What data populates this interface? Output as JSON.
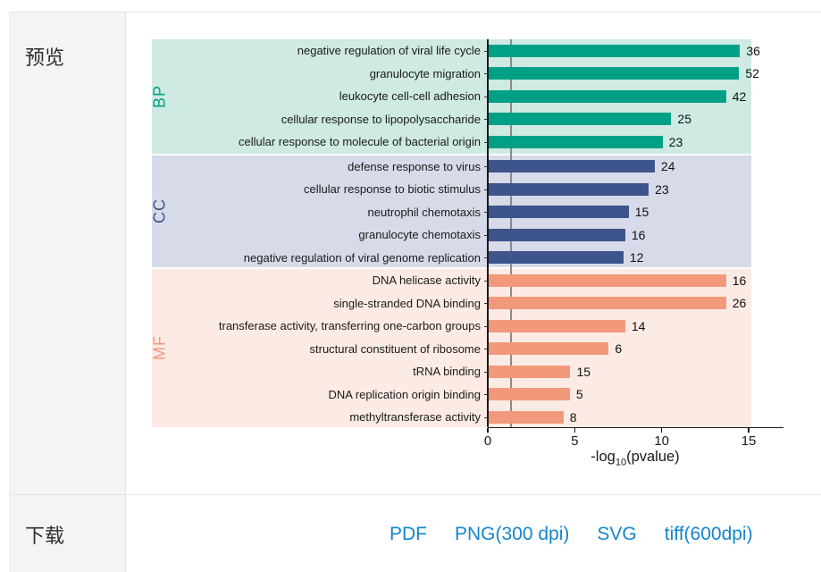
{
  "panel": {
    "preview_label": "预览",
    "download_label": "下载"
  },
  "download_links": [
    "PDF",
    "PNG(300 dpi)",
    "SVG",
    "tiff(600dpi)"
  ],
  "link_color": "#1386CE",
  "chart_data": {
    "type": "bar",
    "orientation": "horizontal",
    "xlabel": "-log10(pvalue)",
    "xlabel_parts": {
      "prefix": "-log",
      "sub": "10",
      "suffix": "(pvalue)"
    },
    "x_ticks": [
      0,
      5,
      10,
      15
    ],
    "xlim": [
      0,
      17
    ],
    "reference_line_x": 1.3,
    "grid": false,
    "groups": [
      {
        "name": "BP",
        "color": "#00A087",
        "bg_color": "#CEEAE2",
        "items": [
          {
            "term": "negative regulation of viral life cycle",
            "neg_log10_pvalue": 14.5,
            "count": 36
          },
          {
            "term": "granulocyte migration",
            "neg_log10_pvalue": 14.45,
            "count": 52
          },
          {
            "term": "leukocyte cell-cell adhesion",
            "neg_log10_pvalue": 13.7,
            "count": 42
          },
          {
            "term": "cellular response to lipopolysaccharide",
            "neg_log10_pvalue": 10.55,
            "count": 25
          },
          {
            "term": "cellular response to molecule of bacterial origin",
            "neg_log10_pvalue": 10.05,
            "count": 23
          }
        ]
      },
      {
        "name": "CC",
        "color": "#3D548C",
        "bg_color": "#D7DAE8",
        "items": [
          {
            "term": "defense response to virus",
            "neg_log10_pvalue": 9.6,
            "count": 24
          },
          {
            "term": "cellular response to biotic stimulus",
            "neg_log10_pvalue": 9.25,
            "count": 23
          },
          {
            "term": "neutrophil chemotaxis",
            "neg_log10_pvalue": 8.1,
            "count": 15
          },
          {
            "term": "granulocyte chemotaxis",
            "neg_log10_pvalue": 7.9,
            "count": 16
          },
          {
            "term": "negative regulation of viral genome replication",
            "neg_log10_pvalue": 7.8,
            "count": 12
          }
        ]
      },
      {
        "name": "MF",
        "color": "#F2997C",
        "bg_color": "#FCEBE4",
        "items": [
          {
            "term": "DNA helicase activity",
            "neg_log10_pvalue": 13.7,
            "count": 16
          },
          {
            "term": "single-stranded DNA binding",
            "neg_log10_pvalue": 13.7,
            "count": 26
          },
          {
            "term": "transferase activity, transferring one-carbon groups",
            "neg_log10_pvalue": 7.9,
            "count": 14
          },
          {
            "term": "structural constituent of ribosome",
            "neg_log10_pvalue": 6.95,
            "count": 6
          },
          {
            "term": "tRNA binding",
            "neg_log10_pvalue": 4.75,
            "count": 15
          },
          {
            "term": "DNA replication origin binding",
            "neg_log10_pvalue": 4.72,
            "count": 5
          },
          {
            "term": "methyltransferase activity",
            "neg_log10_pvalue": 4.35,
            "count": 8
          }
        ]
      }
    ]
  }
}
